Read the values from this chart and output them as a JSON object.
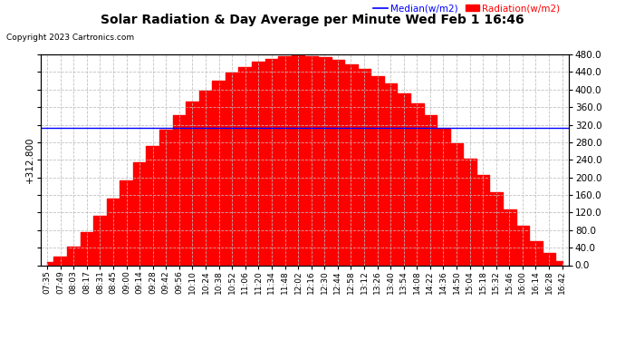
{
  "title": "Solar Radiation & Day Average per Minute Wed Feb 1 16:46",
  "copyright": "Copyright 2023 Cartronics.com",
  "legend_median_label": "Median(w/m2)",
  "legend_radiation_label": "Radiation(w/m2)",
  "median_value": 312.8,
  "ylim": [
    0.0,
    480.0
  ],
  "yticks": [
    0.0,
    40.0,
    80.0,
    120.0,
    160.0,
    200.0,
    240.0,
    280.0,
    320.0,
    360.0,
    400.0,
    440.0,
    480.0
  ],
  "fill_color": "#ff0000",
  "line_color": "#0000ff",
  "title_color": "#000000",
  "copyright_color": "#000000",
  "legend_median_color": "#0000ff",
  "legend_radiation_color": "#ff0000",
  "background_color": "#ffffff",
  "grid_color": "#bbbbbb",
  "xtick_labels": [
    "07:35",
    "07:49",
    "08:03",
    "08:17",
    "08:31",
    "08:45",
    "09:00",
    "09:14",
    "09:28",
    "09:42",
    "09:56",
    "10:10",
    "10:24",
    "10:38",
    "10:52",
    "11:06",
    "11:20",
    "11:34",
    "11:48",
    "12:02",
    "12:16",
    "12:30",
    "12:44",
    "12:58",
    "13:12",
    "13:26",
    "13:40",
    "13:54",
    "14:08",
    "14:22",
    "14:36",
    "14:50",
    "15:04",
    "15:18",
    "15:32",
    "15:46",
    "16:00",
    "16:14",
    "16:28",
    "16:42"
  ],
  "radiation_values": [
    8,
    20,
    42,
    75,
    112,
    152,
    193,
    234,
    272,
    308,
    342,
    372,
    398,
    420,
    438,
    452,
    463,
    470,
    475,
    477,
    476,
    473,
    467,
    458,
    446,
    431,
    413,
    392,
    368,
    341,
    311,
    278,
    243,
    206,
    167,
    128,
    90,
    55,
    28,
    10
  ]
}
